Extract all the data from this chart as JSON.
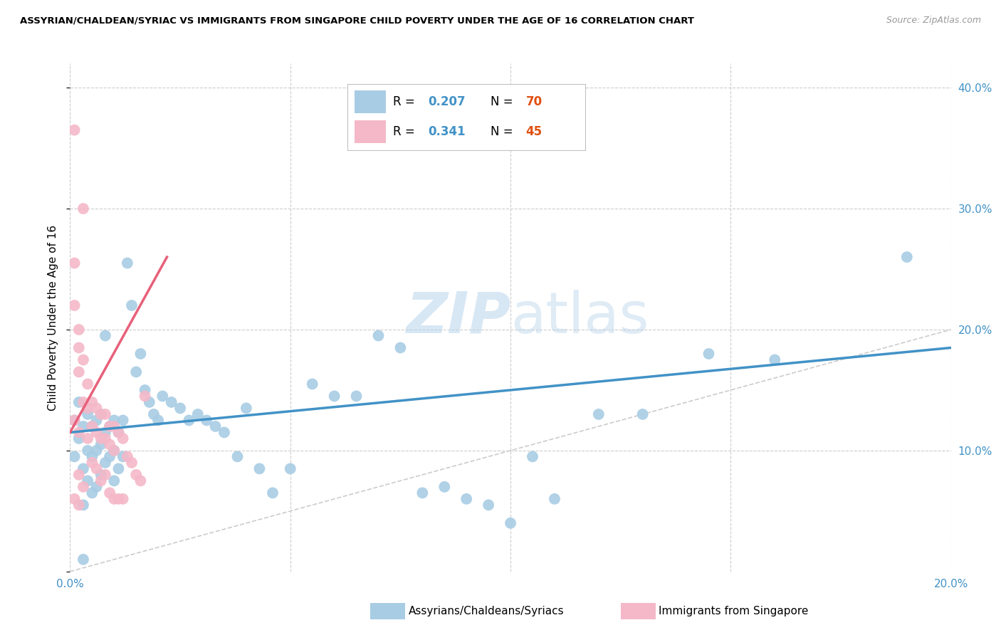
{
  "title": "ASSYRIAN/CHALDEAN/SYRIAC VS IMMIGRANTS FROM SINGAPORE CHILD POVERTY UNDER THE AGE OF 16 CORRELATION CHART",
  "source": "Source: ZipAtlas.com",
  "ylabel": "Child Poverty Under the Age of 16",
  "x_min": 0.0,
  "x_max": 0.2,
  "y_min": 0.0,
  "y_max": 0.42,
  "x_ticks": [
    0.0,
    0.05,
    0.1,
    0.15,
    0.2
  ],
  "y_ticks": [
    0.0,
    0.1,
    0.2,
    0.3,
    0.4
  ],
  "blue_color": "#a8cce4",
  "pink_color": "#f4b8c8",
  "blue_line_color": "#4292c6",
  "pink_line_color": "#e8607a",
  "diagonal_line_color": "#cccccc",
  "watermark_color": "#d0e4f2",
  "legend_R_color": "#4292c6",
  "legend_N_color": "#e05010",
  "blue_trend_x": [
    0.0,
    0.2
  ],
  "blue_trend_y": [
    0.115,
    0.185
  ],
  "pink_trend_x": [
    0.0,
    0.022
  ],
  "pink_trend_y": [
    0.115,
    0.26
  ],
  "blue_scatter_x": [
    0.001,
    0.001,
    0.002,
    0.002,
    0.003,
    0.003,
    0.003,
    0.004,
    0.004,
    0.004,
    0.005,
    0.005,
    0.005,
    0.006,
    0.006,
    0.006,
    0.007,
    0.007,
    0.007,
    0.008,
    0.008,
    0.009,
    0.009,
    0.01,
    0.01,
    0.01,
    0.011,
    0.011,
    0.012,
    0.012,
    0.013,
    0.014,
    0.015,
    0.016,
    0.017,
    0.018,
    0.019,
    0.02,
    0.021,
    0.023,
    0.025,
    0.027,
    0.029,
    0.031,
    0.033,
    0.035,
    0.038,
    0.04,
    0.043,
    0.046,
    0.05,
    0.055,
    0.06,
    0.065,
    0.07,
    0.075,
    0.08,
    0.085,
    0.09,
    0.095,
    0.1,
    0.105,
    0.11,
    0.12,
    0.13,
    0.145,
    0.16,
    0.19,
    0.003,
    0.008
  ],
  "blue_scatter_y": [
    0.125,
    0.095,
    0.14,
    0.11,
    0.12,
    0.085,
    0.055,
    0.13,
    0.1,
    0.075,
    0.12,
    0.095,
    0.065,
    0.125,
    0.1,
    0.07,
    0.13,
    0.105,
    0.08,
    0.115,
    0.09,
    0.12,
    0.095,
    0.125,
    0.1,
    0.075,
    0.115,
    0.085,
    0.125,
    0.095,
    0.255,
    0.22,
    0.165,
    0.18,
    0.15,
    0.14,
    0.13,
    0.125,
    0.145,
    0.14,
    0.135,
    0.125,
    0.13,
    0.125,
    0.12,
    0.115,
    0.095,
    0.135,
    0.085,
    0.065,
    0.085,
    0.155,
    0.145,
    0.145,
    0.195,
    0.185,
    0.065,
    0.07,
    0.06,
    0.055,
    0.04,
    0.095,
    0.06,
    0.13,
    0.13,
    0.18,
    0.175,
    0.26,
    0.01,
    0.195
  ],
  "pink_scatter_x": [
    0.001,
    0.001,
    0.001,
    0.001,
    0.001,
    0.002,
    0.002,
    0.002,
    0.002,
    0.002,
    0.002,
    0.003,
    0.003,
    0.003,
    0.003,
    0.004,
    0.004,
    0.004,
    0.005,
    0.005,
    0.005,
    0.006,
    0.006,
    0.006,
    0.007,
    0.007,
    0.007,
    0.008,
    0.008,
    0.008,
    0.009,
    0.009,
    0.009,
    0.01,
    0.01,
    0.01,
    0.011,
    0.011,
    0.012,
    0.012,
    0.013,
    0.014,
    0.015,
    0.016,
    0.017
  ],
  "pink_scatter_y": [
    0.365,
    0.255,
    0.22,
    0.125,
    0.06,
    0.2,
    0.185,
    0.165,
    0.115,
    0.08,
    0.055,
    0.3,
    0.175,
    0.14,
    0.07,
    0.155,
    0.135,
    0.11,
    0.14,
    0.12,
    0.09,
    0.135,
    0.115,
    0.085,
    0.13,
    0.11,
    0.075,
    0.13,
    0.11,
    0.08,
    0.12,
    0.105,
    0.065,
    0.12,
    0.1,
    0.06,
    0.115,
    0.06,
    0.11,
    0.06,
    0.095,
    0.09,
    0.08,
    0.075,
    0.145
  ]
}
